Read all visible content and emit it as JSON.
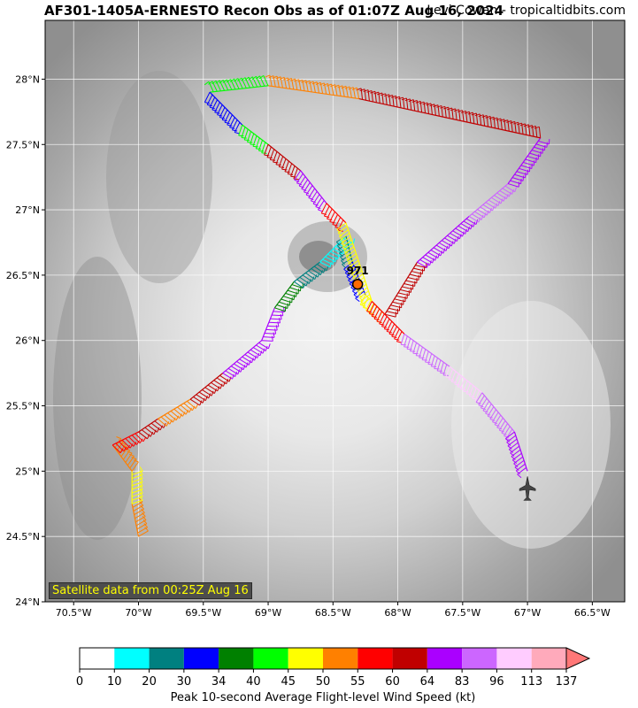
{
  "header": {
    "title": "AF301-1405A-ERNESTO Recon Obs as of 01:07Z Aug 16, 2024",
    "credit": "Levi Cowan - tropicaltidbits.com"
  },
  "map": {
    "lat_labels": [
      "24°N",
      "24.5°N",
      "25°N",
      "25.5°N",
      "26°N",
      "26.5°N",
      "27°N",
      "27.5°N",
      "28°N"
    ],
    "lon_labels": [
      "70.5°W",
      "70°W",
      "69.5°W",
      "69°W",
      "68.5°W",
      "68°W",
      "67.5°W",
      "67°W",
      "66.5°W"
    ],
    "lat_range": [
      24.0,
      28.45
    ],
    "lon_range": [
      -70.72,
      -66.25
    ],
    "center_pressure_label": "971",
    "center": {
      "lat": 26.43,
      "lon": -68.31
    },
    "satellite_note": "Satellite data from 00:25Z Aug 16",
    "aircraft_icon": "airplane-icon",
    "flight_track": [
      {
        "lat": 24.5,
        "lon": -70.0,
        "kt": 50
      },
      {
        "lat": 24.75,
        "lon": -70.05,
        "kt": 45
      },
      {
        "lat": 25.0,
        "lon": -70.05,
        "kt": 50
      },
      {
        "lat": 25.2,
        "lon": -70.2,
        "kt": 55
      },
      {
        "lat": 25.3,
        "lon": -70.0,
        "kt": 60
      },
      {
        "lat": 25.4,
        "lon": -69.85,
        "kt": 50
      },
      {
        "lat": 25.55,
        "lon": -69.6,
        "kt": 60
      },
      {
        "lat": 25.75,
        "lon": -69.35,
        "kt": 64
      },
      {
        "lat": 26.0,
        "lon": -69.05,
        "kt": 64
      },
      {
        "lat": 26.25,
        "lon": -68.95,
        "kt": 34
      },
      {
        "lat": 26.45,
        "lon": -68.8,
        "kt": 20
      },
      {
        "lat": 26.6,
        "lon": -68.6,
        "kt": 10
      },
      {
        "lat": 26.8,
        "lon": -68.4,
        "kt": 20
      },
      {
        "lat": 26.6,
        "lon": -68.35,
        "kt": 30
      },
      {
        "lat": 26.35,
        "lon": -68.25,
        "kt": 45
      },
      {
        "lat": 26.2,
        "lon": -68.1,
        "kt": 60
      },
      {
        "lat": 26.6,
        "lon": -67.85,
        "kt": 64
      },
      {
        "lat": 26.95,
        "lon": -67.45,
        "kt": 83
      },
      {
        "lat": 27.2,
        "lon": -67.15,
        "kt": 64
      },
      {
        "lat": 27.55,
        "lon": -66.9,
        "kt": 60
      },
      {
        "lat": 27.7,
        "lon": -67.6,
        "kt": 60
      },
      {
        "lat": 27.85,
        "lon": -68.3,
        "kt": 50
      },
      {
        "lat": 27.95,
        "lon": -69.0,
        "kt": 40
      },
      {
        "lat": 27.9,
        "lon": -69.45,
        "kt": 30
      },
      {
        "lat": 27.65,
        "lon": -69.2,
        "kt": 40
      },
      {
        "lat": 27.5,
        "lon": -69.0,
        "kt": 60
      },
      {
        "lat": 27.3,
        "lon": -68.75,
        "kt": 64
      },
      {
        "lat": 27.05,
        "lon": -68.55,
        "kt": 55
      },
      {
        "lat": 26.9,
        "lon": -68.4,
        "kt": 45
      },
      {
        "lat": 26.3,
        "lon": -68.2,
        "kt": 55
      },
      {
        "lat": 26.05,
        "lon": -67.95,
        "kt": 83
      },
      {
        "lat": 25.8,
        "lon": -67.6,
        "kt": 96
      },
      {
        "lat": 25.6,
        "lon": -67.35,
        "kt": 83
      },
      {
        "lat": 25.3,
        "lon": -67.1,
        "kt": 64
      },
      {
        "lat": 25.0,
        "lon": -67.0,
        "kt": 64
      }
    ]
  },
  "colorbar": {
    "title": "Peak 10-second Average Flight-level Wind Speed (kt)",
    "ticks": [
      "0",
      "10",
      "20",
      "30",
      "34",
      "40",
      "45",
      "50",
      "55",
      "60",
      "64",
      "83",
      "96",
      "113",
      "137"
    ],
    "colors": [
      "#ffffff",
      "#00ffff",
      "#008080",
      "#0000ff",
      "#008000",
      "#00ff00",
      "#ffff00",
      "#ff8000",
      "#ff0000",
      "#c00000",
      "#aa00ff",
      "#cc66ff",
      "#ffccff",
      "#ffaabb"
    ],
    "extend_color": "#ff7777"
  }
}
